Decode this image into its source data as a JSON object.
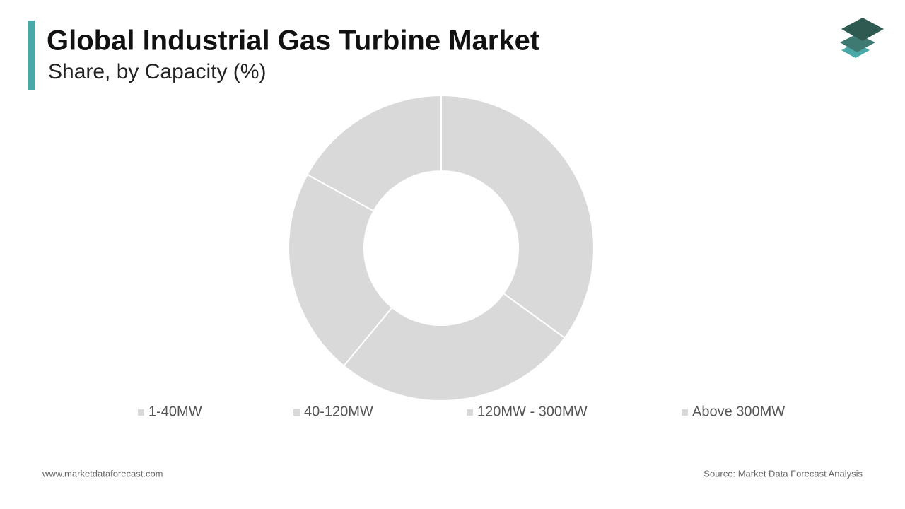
{
  "chart_data": {
    "type": "donut",
    "title": "Global Industrial Gas Turbine Market",
    "subtitle": "Share, by Capacity (%)",
    "categories": [
      "1-40MW",
      "40-120MW",
      "120MW - 300MW",
      "Above 300MW"
    ],
    "values": [
      35,
      26,
      22,
      17
    ],
    "colors": [
      "#d9d9d9",
      "#d9d9d9",
      "#d9d9d9",
      "#d9d9d9"
    ],
    "legend": "bottom"
  },
  "footer": {
    "website": "www.marketdataforecast.com",
    "source": "Source: Market Data Forecast Analysis"
  }
}
